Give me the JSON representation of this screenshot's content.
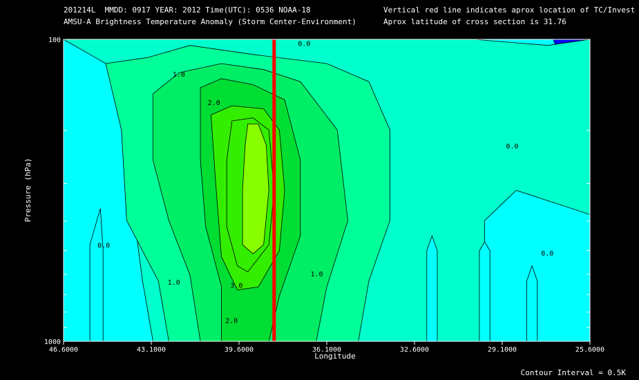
{
  "header": {
    "line1_left": "201214L  MMDD: 0917 YEAR: 2012 Time(UTC): 0536 NOAA-18",
    "line2_left": "AMSU-A Brightness Temperature Anomaly (Storm Center-Environment)",
    "line1_right": "Vertical red line indicates aprox location of TC/Invest",
    "line2_right": "Aprox latitude of cross section is 31.76"
  },
  "footer": {
    "contour_interval": "Contour Interval = 0.5K"
  },
  "colors": {
    "background": "#000000",
    "level_neg": "#0000ff",
    "level_0": "#00ffff",
    "level_1": "#00ffcc",
    "level_2": "#00ff99",
    "level_3": "#00ee66",
    "level_4": "#00dd33",
    "level_5": "#33ee00",
    "level_6": "#88ff00",
    "tc_line": "#ff0000"
  },
  "chart_data": {
    "type": "contour",
    "xlabel": "Longitude",
    "ylabel": "Pressure (hPa)",
    "x_ticks": [
      "46.6000",
      "43.1000",
      "39.6000",
      "36.1000",
      "32.6000",
      "29.1000",
      "25.6000"
    ],
    "x_tick_values": [
      46.6,
      43.1,
      39.6,
      36.1,
      32.6,
      29.1,
      25.6
    ],
    "y_ticks": [
      "100",
      "1000"
    ],
    "y_tick_values": [
      100,
      1000
    ],
    "xlim": [
      46.6,
      25.6
    ],
    "ylim": [
      1000,
      100
    ],
    "y_scale": "log",
    "tc_longitude": 38.2,
    "contour_interval": 0.5,
    "contour_labels": [
      {
        "text": "0.0",
        "x": 37.0,
        "p": 105
      },
      {
        "text": "1.0",
        "x": 42.0,
        "p": 133
      },
      {
        "text": "2.0",
        "x": 40.6,
        "p": 165
      },
      {
        "text": "0.0",
        "x": 28.7,
        "p": 230
      },
      {
        "text": "0.0",
        "x": 45.0,
        "p": 490
      },
      {
        "text": "1.0",
        "x": 42.2,
        "p": 650
      },
      {
        "text": "3.0",
        "x": 39.7,
        "p": 665
      },
      {
        "text": "1.0",
        "x": 36.5,
        "p": 610
      },
      {
        "text": "0.0",
        "x": 27.3,
        "p": 520
      },
      {
        "text": "2.0",
        "x": 39.9,
        "p": 870
      }
    ],
    "peak_anomaly_region": {
      "x": 39.6,
      "p_top": 210,
      "p_bottom": 600
    }
  }
}
